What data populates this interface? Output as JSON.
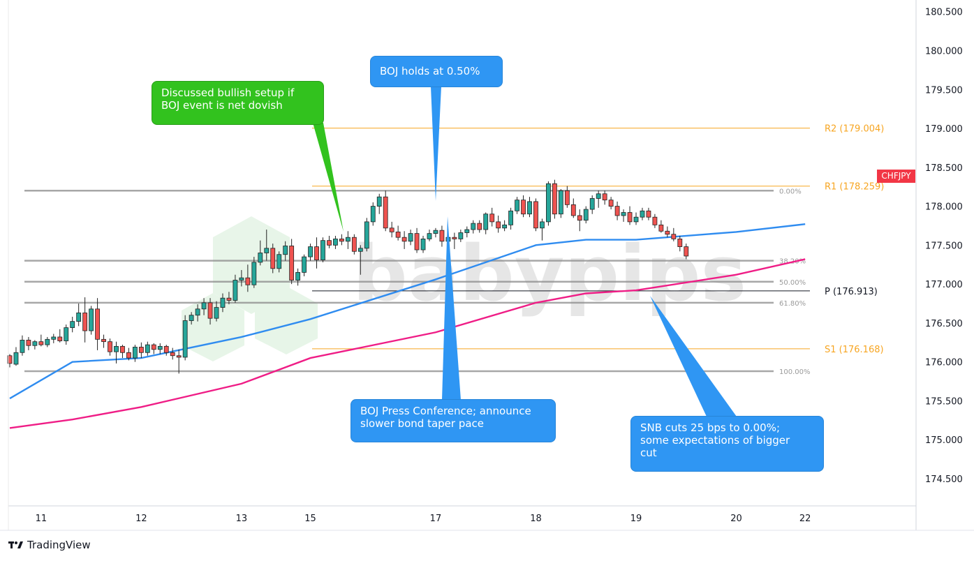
{
  "chart_data": {
    "type": "candlestick",
    "symbol": "CHFJPY",
    "y_axis": {
      "range": [
        174.15,
        180.65
      ],
      "ticks": [
        "180.500",
        "180.000",
        "179.500",
        "179.000",
        "178.500",
        "178.000",
        "177.500",
        "177.000",
        "176.500",
        "176.000",
        "175.500",
        "175.000",
        "174.500"
      ]
    },
    "x_axis": {
      "ticks": [
        {
          "label": "11",
          "bar": 5
        },
        {
          "label": "12",
          "bar": 21
        },
        {
          "label": "13",
          "bar": 37
        },
        {
          "label": "15",
          "bar": 48
        },
        {
          "label": "17",
          "bar": 68
        },
        {
          "label": "18",
          "bar": 84
        },
        {
          "label": "19",
          "bar": 100
        },
        {
          "label": "20",
          "bar": 116
        },
        {
          "label": "22",
          "bar": 127
        }
      ]
    },
    "grid": false,
    "levels": [
      {
        "label": "R2 (179.004)",
        "value": 179.004,
        "color": "#f7a521"
      },
      {
        "label": "R1 (178.259)",
        "value": 178.259,
        "color": "#f7a521"
      },
      {
        "label": "P (176.913)",
        "value": 176.913,
        "color": "#131722"
      },
      {
        "label": "S1 (176.168)",
        "value": 176.168,
        "color": "#f7a521"
      }
    ],
    "fibonacci": [
      {
        "label": "0.00%",
        "value": 178.2
      },
      {
        "label": "38.20%",
        "value": 177.3
      },
      {
        "label": "50.00%",
        "value": 177.03
      },
      {
        "label": "61.80%",
        "value": 176.76
      },
      {
        "label": "100.00%",
        "value": 175.88
      }
    ],
    "moving_averages": [
      {
        "color": "#2f8cf0",
        "points": [
          [
            0,
            175.53
          ],
          [
            10,
            176.0
          ],
          [
            21,
            176.05
          ],
          [
            37,
            176.32
          ],
          [
            48,
            176.55
          ],
          [
            68,
            177.06
          ],
          [
            84,
            177.5
          ],
          [
            92,
            177.57
          ],
          [
            100,
            177.57
          ],
          [
            116,
            177.67
          ],
          [
            127,
            177.77
          ]
        ]
      },
      {
        "color": "#ef1d86",
        "points": [
          [
            0,
            175.15
          ],
          [
            10,
            175.26
          ],
          [
            21,
            175.42
          ],
          [
            37,
            175.72
          ],
          [
            48,
            176.05
          ],
          [
            68,
            176.38
          ],
          [
            84,
            176.76
          ],
          [
            92,
            176.88
          ],
          [
            100,
            176.92
          ],
          [
            116,
            177.12
          ],
          [
            127,
            177.32
          ]
        ]
      }
    ],
    "candles": [
      [
        176.08,
        176.1,
        175.93,
        175.98
      ],
      [
        175.97,
        176.19,
        175.95,
        176.12
      ],
      [
        176.12,
        176.34,
        176.08,
        176.28
      ],
      [
        176.28,
        176.32,
        176.15,
        176.21
      ],
      [
        176.21,
        176.28,
        176.16,
        176.26
      ],
      [
        176.26,
        176.35,
        176.2,
        176.22
      ],
      [
        176.22,
        176.32,
        176.19,
        176.29
      ],
      [
        176.29,
        176.36,
        176.24,
        176.32
      ],
      [
        176.32,
        176.42,
        176.25,
        176.27
      ],
      [
        176.27,
        176.48,
        176.22,
        176.44
      ],
      [
        176.44,
        176.58,
        176.38,
        176.52
      ],
      [
        176.52,
        176.75,
        176.46,
        176.63
      ],
      [
        176.63,
        176.83,
        176.25,
        176.4
      ],
      [
        176.4,
        176.72,
        176.35,
        176.68
      ],
      [
        176.68,
        176.82,
        176.15,
        176.29
      ],
      [
        176.29,
        176.35,
        176.18,
        176.26
      ],
      [
        176.26,
        176.3,
        176.08,
        176.13
      ],
      [
        176.13,
        176.26,
        175.98,
        176.2
      ],
      [
        176.2,
        176.22,
        176.05,
        176.12
      ],
      [
        176.12,
        176.18,
        176.02,
        176.05
      ],
      [
        176.05,
        176.22,
        176.0,
        176.19
      ],
      [
        176.19,
        176.25,
        176.05,
        176.12
      ],
      [
        176.12,
        176.26,
        176.08,
        176.22
      ],
      [
        176.22,
        176.24,
        176.1,
        176.16
      ],
      [
        176.16,
        176.24,
        176.1,
        176.2
      ],
      [
        176.2,
        176.22,
        176.08,
        176.12
      ],
      [
        176.12,
        176.18,
        176.03,
        176.08
      ],
      [
        176.08,
        176.16,
        175.85,
        176.06
      ],
      [
        176.06,
        176.6,
        176.02,
        176.53
      ],
      [
        176.53,
        176.64,
        176.48,
        176.6
      ],
      [
        176.6,
        176.74,
        176.52,
        176.68
      ],
      [
        176.68,
        176.82,
        176.6,
        176.76
      ],
      [
        176.76,
        176.82,
        176.48,
        176.56
      ],
      [
        176.56,
        176.78,
        176.52,
        176.7
      ],
      [
        176.7,
        176.88,
        176.64,
        176.82
      ],
      [
        176.82,
        176.9,
        176.74,
        176.79
      ],
      [
        176.79,
        177.12,
        176.76,
        177.05
      ],
      [
        177.05,
        177.18,
        176.97,
        177.08
      ],
      [
        177.08,
        177.25,
        176.9,
        176.99
      ],
      [
        176.99,
        177.35,
        176.95,
        177.28
      ],
      [
        177.28,
        177.56,
        177.24,
        177.4
      ],
      [
        177.4,
        177.7,
        177.3,
        177.46
      ],
      [
        177.46,
        177.52,
        177.14,
        177.2
      ],
      [
        177.2,
        177.42,
        177.15,
        177.38
      ],
      [
        177.38,
        177.55,
        177.3,
        177.49
      ],
      [
        177.49,
        177.58,
        177.0,
        177.05
      ],
      [
        177.05,
        177.2,
        176.98,
        177.15
      ],
      [
        177.15,
        177.38,
        177.1,
        177.35
      ],
      [
        177.35,
        177.52,
        177.3,
        177.48
      ],
      [
        177.48,
        177.6,
        177.2,
        177.31
      ],
      [
        177.31,
        177.6,
        177.28,
        177.56
      ],
      [
        177.56,
        177.62,
        177.46,
        177.5
      ],
      [
        177.5,
        177.62,
        177.45,
        177.58
      ],
      [
        177.58,
        177.64,
        177.5,
        177.55
      ],
      [
        177.55,
        177.68,
        177.45,
        177.6
      ],
      [
        177.6,
        177.64,
        177.38,
        177.42
      ],
      [
        177.42,
        177.5,
        177.12,
        177.46
      ],
      [
        177.46,
        177.85,
        177.42,
        177.8
      ],
      [
        177.8,
        178.05,
        177.75,
        178.0
      ],
      [
        178.0,
        178.16,
        177.9,
        178.12
      ],
      [
        178.12,
        178.2,
        177.68,
        177.72
      ],
      [
        177.72,
        177.8,
        177.6,
        177.67
      ],
      [
        177.67,
        177.75,
        177.56,
        177.6
      ],
      [
        177.6,
        177.68,
        177.45,
        177.55
      ],
      [
        177.55,
        177.7,
        177.5,
        177.65
      ],
      [
        177.65,
        177.72,
        177.4,
        177.44
      ],
      [
        177.44,
        177.62,
        177.4,
        177.58
      ],
      [
        177.58,
        177.7,
        177.55,
        177.65
      ],
      [
        177.65,
        177.72,
        177.6,
        177.69
      ],
      [
        177.69,
        177.75,
        177.48,
        177.55
      ],
      [
        177.55,
        177.68,
        177.5,
        177.6
      ],
      [
        177.6,
        177.66,
        177.45,
        177.58
      ],
      [
        177.58,
        177.7,
        177.54,
        177.66
      ],
      [
        177.66,
        177.74,
        177.6,
        177.7
      ],
      [
        177.7,
        177.82,
        177.65,
        177.78
      ],
      [
        177.78,
        177.82,
        177.66,
        177.7
      ],
      [
        177.7,
        177.92,
        177.64,
        177.9
      ],
      [
        177.9,
        177.98,
        177.74,
        177.8
      ],
      [
        177.8,
        177.88,
        177.66,
        177.72
      ],
      [
        177.72,
        177.82,
        177.68,
        177.76
      ],
      [
        177.76,
        177.98,
        177.7,
        177.94
      ],
      [
        177.94,
        178.12,
        177.9,
        178.08
      ],
      [
        178.08,
        178.14,
        177.86,
        177.9
      ],
      [
        177.9,
        178.12,
        177.86,
        178.06
      ],
      [
        178.06,
        178.1,
        177.68,
        177.72
      ],
      [
        177.72,
        177.84,
        177.56,
        177.8
      ],
      [
        177.8,
        178.32,
        177.75,
        178.29
      ],
      [
        178.29,
        178.34,
        177.84,
        177.9
      ],
      [
        177.9,
        178.22,
        177.85,
        178.2
      ],
      [
        178.2,
        178.26,
        177.98,
        178.02
      ],
      [
        178.02,
        178.1,
        177.85,
        177.88
      ],
      [
        177.88,
        177.96,
        177.68,
        177.82
      ],
      [
        177.82,
        178.0,
        177.78,
        177.96
      ],
      [
        177.96,
        178.14,
        177.9,
        178.1
      ],
      [
        178.1,
        178.2,
        177.98,
        178.16
      ],
      [
        178.16,
        178.2,
        178.02,
        178.08
      ],
      [
        178.08,
        178.12,
        177.96,
        178.0
      ],
      [
        178.0,
        178.06,
        177.82,
        177.88
      ],
      [
        177.88,
        177.96,
        177.8,
        177.92
      ],
      [
        177.92,
        178.0,
        177.76,
        177.8
      ],
      [
        177.8,
        177.92,
        177.76,
        177.86
      ],
      [
        177.86,
        177.98,
        177.82,
        177.94
      ],
      [
        177.94,
        177.98,
        177.82,
        177.86
      ],
      [
        177.86,
        177.9,
        177.72,
        177.76
      ],
      [
        177.76,
        177.82,
        177.66,
        177.68
      ],
      [
        177.68,
        177.74,
        177.6,
        177.64
      ],
      [
        177.64,
        177.72,
        177.55,
        177.58
      ],
      [
        177.58,
        177.62,
        177.42,
        177.48
      ],
      [
        177.48,
        177.52,
        177.32,
        177.36
      ]
    ]
  },
  "callouts": {
    "bullish": "Discussed bullish setup if\nBOJ event is net dovish",
    "boj_holds": "BOJ holds at 0.50%",
    "boj_press": "BOJ Press Conference; announce\nslower bond taper pace",
    "snb": "SNB cuts 25 bps to 0.00%;\nsome expectations of bigger\ncut"
  },
  "brand": "TradingView",
  "watermark": "babypips",
  "symbol_badge": "CHFJPY"
}
